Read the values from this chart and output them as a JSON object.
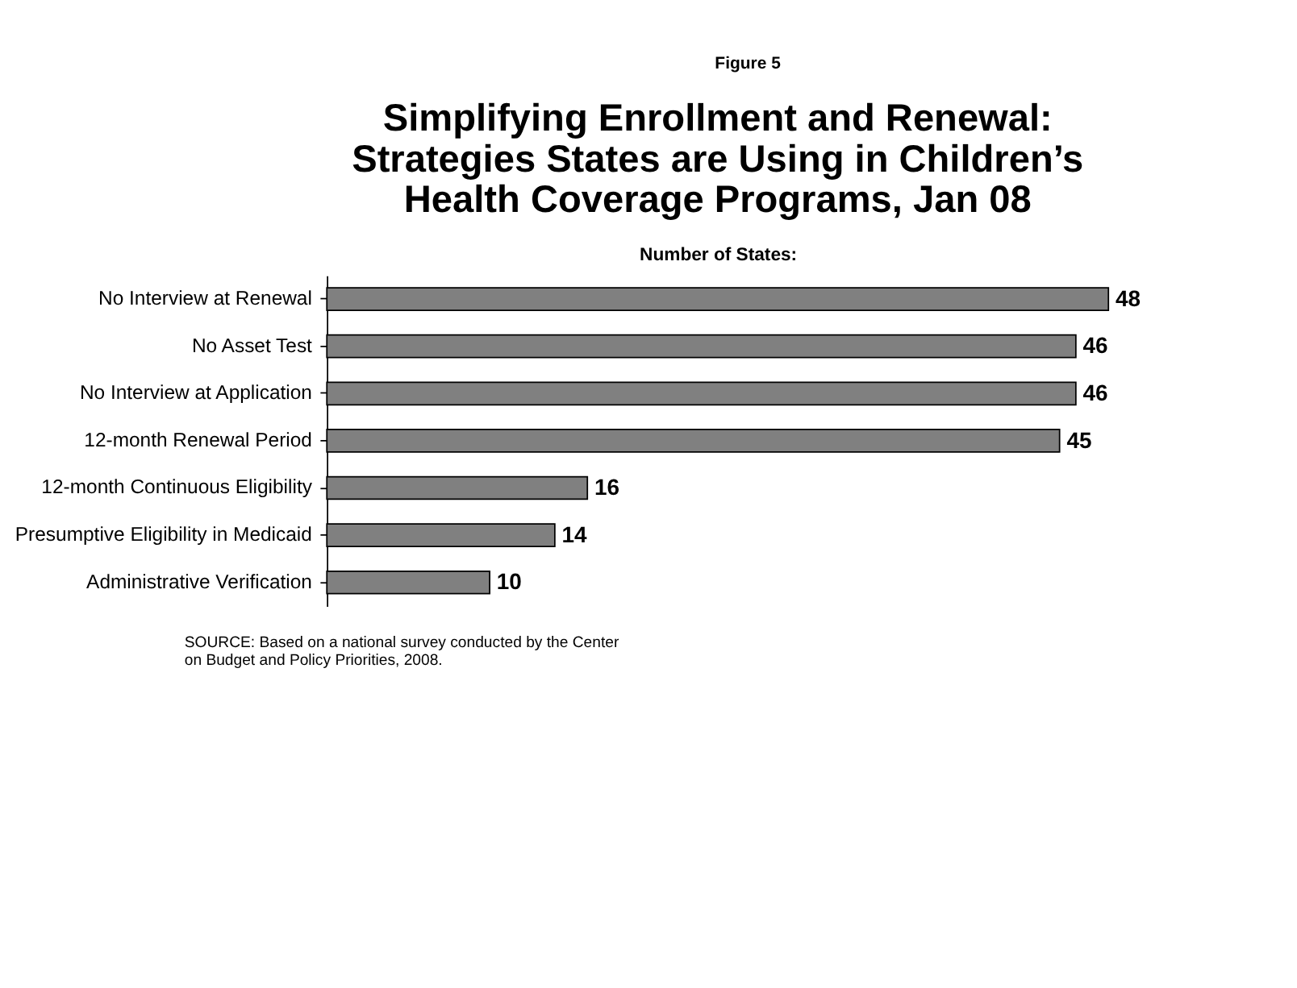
{
  "chart_data": {
    "type": "bar",
    "orientation": "horizontal",
    "title": "Simplifying Enrollment and Renewal:\nStrategies States are Using in Children’s\nHealth Coverage Programs, Jan 08",
    "xlabel": "Number of States:",
    "categories": [
      "No Interview at Renewal",
      "No Asset Test",
      "No Interview at Application",
      "12-month Renewal Period",
      "12-month Continuous Eligibility",
      "Presumptive Eligibility in Medicaid",
      "Administrative Verification"
    ],
    "values": [
      48,
      46,
      46,
      45,
      16,
      14,
      10
    ],
    "color": "#808080",
    "data_labels": true,
    "grid": false,
    "annotations": [
      "Figure 5",
      "SOURCE:  Based on a national survey conducted by the Center\non Budget and Policy Priorities, 2008."
    ]
  }
}
